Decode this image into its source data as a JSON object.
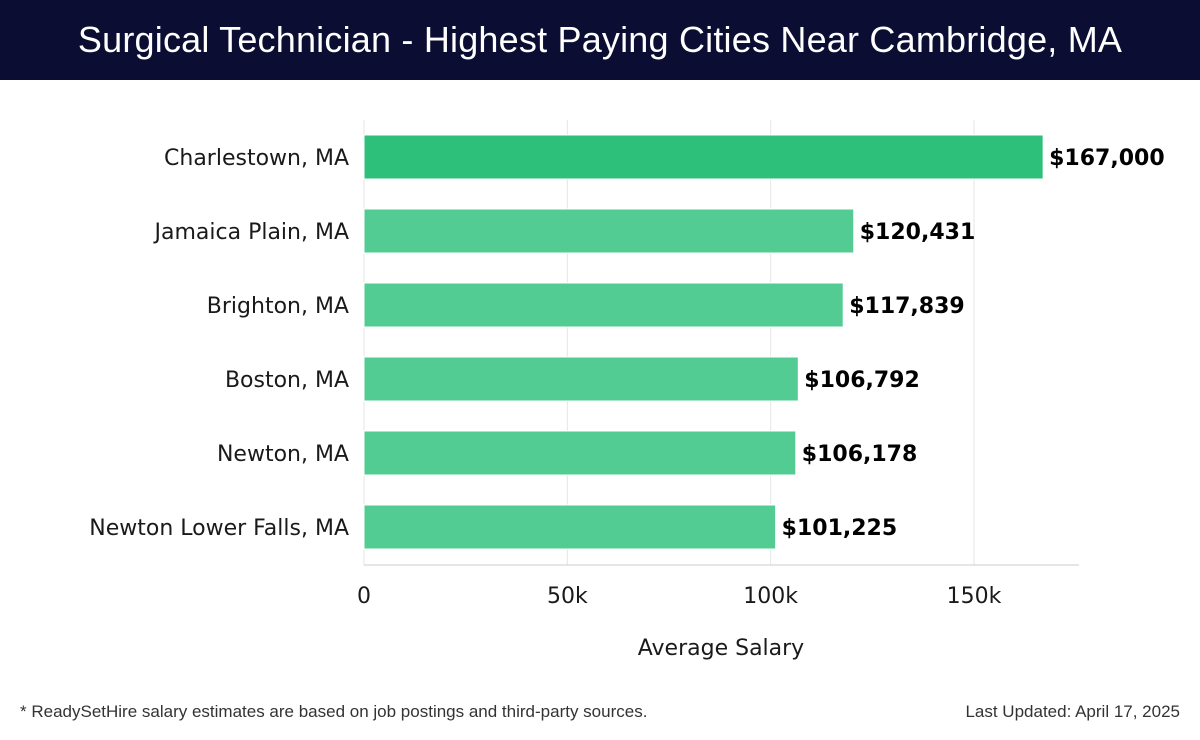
{
  "header": {
    "title": "Surgical Technician - Highest Paying Cities Near Cambridge, MA"
  },
  "chart_data": {
    "type": "bar",
    "orientation": "horizontal",
    "title": "Surgical Technician - Highest Paying Cities Near Cambridge, MA",
    "xlabel": "Average Salary",
    "ylabel": "",
    "categories": [
      "Charlestown, MA",
      "Jamaica Plain, MA",
      "Brighton, MA",
      "Boston, MA",
      "Newton, MA",
      "Newton Lower Falls, MA"
    ],
    "values": [
      167000,
      120431,
      117839,
      106792,
      106178,
      101225
    ],
    "value_labels": [
      "$167,000",
      "$120,431",
      "$117,839",
      "$106,792",
      "$106,178",
      "$101,225"
    ],
    "xlim": [
      0,
      175000
    ],
    "xticks": [
      0,
      50000,
      100000,
      150000
    ],
    "xtick_labels": [
      "0",
      "50k",
      "100k",
      "150k"
    ],
    "grid": true,
    "highlight_color": "#2dc07b",
    "bar_color": "#52cc92"
  },
  "footer": {
    "note": "* ReadySetHire salary estimates are based on job postings and third-party sources.",
    "updated": "Last Updated: April 17, 2025"
  }
}
